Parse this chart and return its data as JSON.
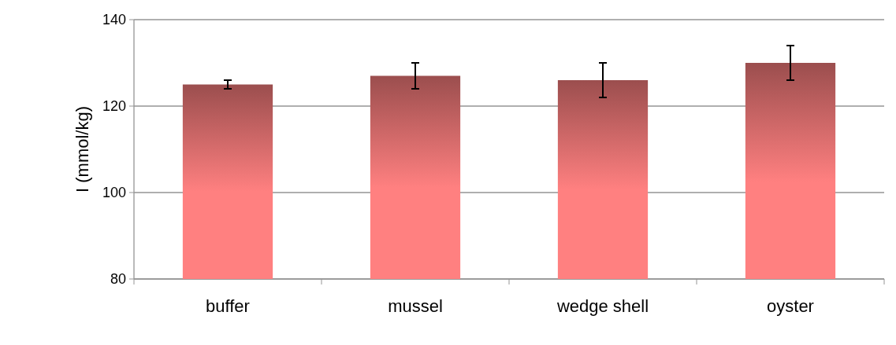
{
  "chart_data": {
    "type": "bar",
    "ylabel": "I (mmol/kg)",
    "categories": [
      "buffer",
      "mussel",
      "wedge shell",
      "oyster"
    ],
    "series": [
      {
        "color": "#ff8080",
        "values": [
          125,
          127,
          126,
          130
        ],
        "errors": [
          1,
          3,
          4,
          4
        ]
      }
    ],
    "ylim": [
      80,
      140
    ],
    "yticks": [
      80,
      100,
      120,
      140
    ],
    "grid": "y"
  }
}
